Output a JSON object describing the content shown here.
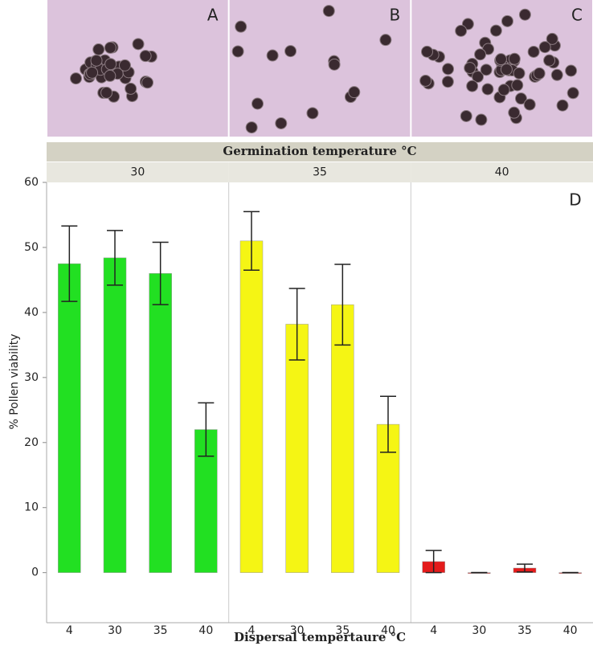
{
  "chart_data": {
    "type": "bar",
    "photo_labels": [
      "A",
      "B",
      "C"
    ],
    "facet_title": "Germination temperature °C",
    "annotation": "D",
    "ylabel": "% Pollen viability",
    "xlabel": "Dispersal tempertaure °C",
    "categories": [
      "4",
      "30",
      "35",
      "40"
    ],
    "series": [
      {
        "name": "30",
        "color": "#22e022",
        "values": [
          47.5,
          48.4,
          46.0,
          22.0
        ],
        "errors": [
          5.8,
          4.2,
          4.8,
          4.1
        ]
      },
      {
        "name": "35",
        "color": "#f5f514",
        "values": [
          51.0,
          38.2,
          41.2,
          22.8
        ],
        "errors": [
          4.5,
          5.5,
          6.2,
          4.3
        ]
      },
      {
        "name": "40",
        "color": "#e41b1b",
        "values": [
          1.7,
          0,
          0.7,
          0
        ],
        "errors": [
          1.7,
          0,
          0.6,
          0
        ]
      }
    ],
    "ylim": [
      -7.7,
      60
    ],
    "yticks": [
      0,
      10,
      20,
      30,
      40,
      50,
      60
    ]
  }
}
